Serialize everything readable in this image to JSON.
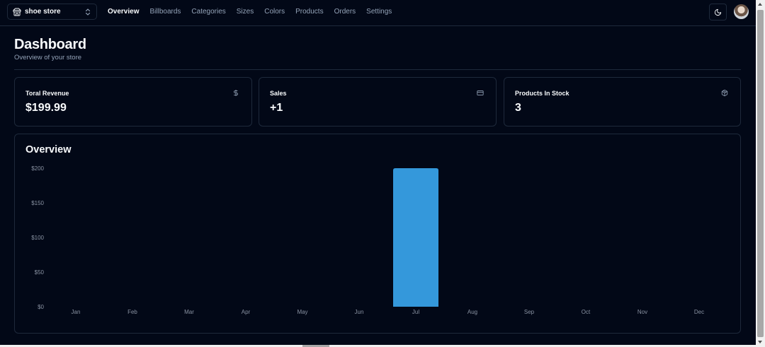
{
  "store_switcher": {
    "name": "shoe store",
    "icon": "store-icon"
  },
  "nav": {
    "links": [
      {
        "label": "Overview",
        "active": true
      },
      {
        "label": "Billboards",
        "active": false
      },
      {
        "label": "Categories",
        "active": false
      },
      {
        "label": "Sizes",
        "active": false
      },
      {
        "label": "Colors",
        "active": false
      },
      {
        "label": "Products",
        "active": false
      },
      {
        "label": "Orders",
        "active": false
      },
      {
        "label": "Settings",
        "active": false
      }
    ]
  },
  "header": {
    "title": "Dashboard",
    "subtitle": "Overview of your store"
  },
  "cards": [
    {
      "title": "Toral Revenue",
      "value": "$199.99",
      "icon": "dollar-icon"
    },
    {
      "title": "Sales",
      "value": "+1",
      "icon": "credit-card-icon"
    },
    {
      "title": "Products In Stock",
      "value": "3",
      "icon": "package-icon"
    }
  ],
  "overview": {
    "title": "Overview"
  },
  "colors": {
    "background": "#020817",
    "border": "#1e293b",
    "bar": "#3498db",
    "muted": "#94a3b8"
  },
  "chart_data": {
    "type": "bar",
    "title": "Overview",
    "categories": [
      "Jan",
      "Feb",
      "Mar",
      "Apr",
      "May",
      "Jun",
      "Jul",
      "Aug",
      "Sep",
      "Oct",
      "Nov",
      "Dec"
    ],
    "values": [
      0,
      0,
      0,
      0,
      0,
      0,
      199.99,
      0,
      0,
      0,
      0,
      0
    ],
    "yticks": [
      0,
      50,
      100,
      150,
      200
    ],
    "ytick_labels": [
      "$0",
      "$50",
      "$100",
      "$150",
      "$200"
    ],
    "ylim": [
      0,
      200
    ],
    "grid": false,
    "legend": "none"
  }
}
